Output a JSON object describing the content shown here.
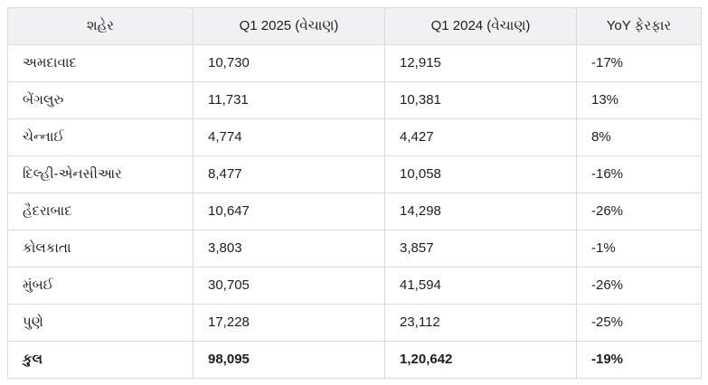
{
  "colors": {
    "header_bg": "#f1f1f3",
    "border": "#d8dade",
    "text": "#1c1e21",
    "row_bg": "#ffffff"
  },
  "chart_data": {
    "type": "table",
    "title": "",
    "columns": [
      "શહેર",
      "Q1 2025 (વેચાણ)",
      "Q1 2024 (વેચાણ)",
      "YoY ફેરફાર"
    ],
    "rows": [
      {
        "city": "અમદાવાદ",
        "q1_2025": "10,730",
        "q1_2024": "12,915",
        "yoy": "-17%"
      },
      {
        "city": "બેંગલુરુ",
        "q1_2025": "11,731",
        "q1_2024": "10,381",
        "yoy": "13%"
      },
      {
        "city": "ચેન્નાઈ",
        "q1_2025": "4,774",
        "q1_2024": "4,427",
        "yoy": "8%"
      },
      {
        "city": "દિલ્હી-એનસીઆર",
        "q1_2025": "8,477",
        "q1_2024": "10,058",
        "yoy": "-16%"
      },
      {
        "city": "હૈદરાબાદ",
        "q1_2025": "10,647",
        "q1_2024": "14,298",
        "yoy": "-26%"
      },
      {
        "city": "કોલકાતા",
        "q1_2025": "3,803",
        "q1_2024": "3,857",
        "yoy": "-1%"
      },
      {
        "city": "મુંબઈ",
        "q1_2025": "30,705",
        "q1_2024": "41,594",
        "yoy": "-26%"
      },
      {
        "city": "પુણે",
        "q1_2025": "17,228",
        "q1_2024": "23,112",
        "yoy": "-25%"
      }
    ],
    "total_row": {
      "city": "કુલ",
      "q1_2025": "98,095",
      "q1_2024": "1,20,642",
      "yoy": "-19%"
    },
    "numeric_values": {
      "q1_2025": [
        10730,
        11731,
        4774,
        8477,
        10647,
        3803,
        30705,
        17228
      ],
      "q1_2024": [
        12915,
        10381,
        4427,
        10058,
        14298,
        3857,
        41594,
        23112
      ],
      "yoy_percent": [
        -17,
        13,
        8,
        -16,
        -26,
        -1,
        -26,
        -25
      ],
      "total_q1_2025": 98095,
      "total_q1_2024": 120642,
      "total_yoy_percent": -19
    }
  }
}
